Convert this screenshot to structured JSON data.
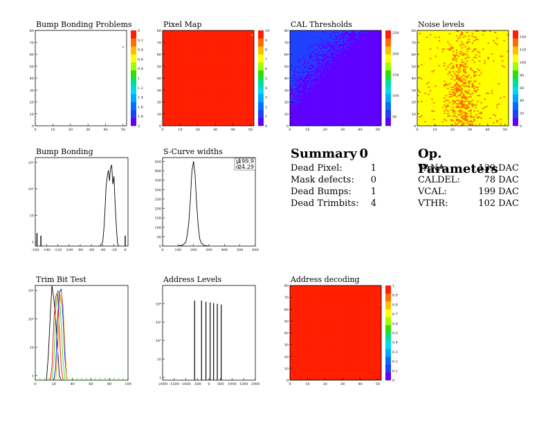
{
  "page": {
    "background": "#ffffff"
  },
  "palette": [
    "#5e00ff",
    "#1f40ff",
    "#0070ff",
    "#00a8ff",
    "#00d8f0",
    "#00e090",
    "#2ee000",
    "#a0ff00",
    "#ffff00",
    "#ffbe00",
    "#ff6e00",
    "#ff1e00"
  ],
  "chart_data": [
    {
      "id": "bump-bonding-problems",
      "type": "heatmap",
      "title": "Bump Bonding Problems",
      "xlim": [
        0,
        52
      ],
      "ylim": [
        0,
        80
      ],
      "xticks": [
        0,
        10,
        20,
        30,
        40,
        50
      ],
      "xticklabels": [
        "0",
        "10",
        "20",
        "30",
        "40",
        "50"
      ],
      "yticks": [
        0,
        10,
        20,
        30,
        40,
        50,
        60,
        70,
        80
      ],
      "yticklabels": [
        "0",
        "10",
        "20",
        "30",
        "40",
        "50",
        "60",
        "70",
        "80"
      ],
      "zlim": [
        0,
        2
      ],
      "zaxis_reversed": true,
      "zticks": [
        0,
        0.2,
        0.4,
        0.6,
        0.8,
        1,
        1.2,
        1.4,
        1.6,
        1.8,
        2
      ],
      "zticklabels": [
        "0",
        "0.2",
        "0.4",
        "0.6",
        "0.8",
        "1",
        "1.2",
        "1.4",
        "1.6",
        "1.8",
        "2"
      ],
      "fill": "empty",
      "points": [
        {
          "x": 50,
          "y": 66,
          "z": 0.2
        }
      ]
    },
    {
      "id": "pixel-map",
      "type": "heatmap",
      "title": "Pixel Map",
      "xlim": [
        0,
        52
      ],
      "ylim": [
        0,
        80
      ],
      "xticks": [
        0,
        10,
        20,
        30,
        40,
        50
      ],
      "xticklabels": [
        "0",
        "10",
        "20",
        "30",
        "40",
        "50"
      ],
      "yticks": [
        0,
        10,
        20,
        30,
        40,
        50,
        60,
        70,
        80
      ],
      "yticklabels": [
        "0",
        "10",
        "20",
        "30",
        "40",
        "50",
        "60",
        "70",
        "80"
      ],
      "zlim": [
        0,
        10
      ],
      "zticks": [
        0,
        1,
        2,
        3,
        4,
        5,
        6,
        7,
        8,
        9,
        10
      ],
      "zticklabels": [
        "0",
        "1",
        "2",
        "3",
        "4",
        "5",
        "6",
        "7",
        "8",
        "9",
        "10"
      ],
      "fill": "uniform",
      "fill_value": 10,
      "points": [
        {
          "x": 51,
          "y": 76,
          "z": 8
        }
      ]
    },
    {
      "id": "cal-thresholds",
      "type": "heatmap",
      "title": "CAL Thresholds",
      "xlim": [
        0,
        52
      ],
      "ylim": [
        0,
        80
      ],
      "xticks": [
        0,
        10,
        20,
        30,
        40,
        50
      ],
      "xticklabels": [
        "0",
        "10",
        "20",
        "30",
        "40",
        "50"
      ],
      "yticks": [
        0,
        10,
        20,
        30,
        40,
        50,
        60,
        70,
        80
      ],
      "yticklabels": [
        "0",
        "10",
        "20",
        "30",
        "40",
        "50",
        "60",
        "70",
        "80"
      ],
      "zlim": [
        28,
        255
      ],
      "zticks": [
        50,
        100,
        150,
        200,
        250
      ],
      "zticklabels": [
        "50",
        "100",
        "150",
        "200",
        "250"
      ],
      "fill": "gradient",
      "fill_range": [
        30,
        55
      ]
    },
    {
      "id": "noise-levels",
      "type": "heatmap",
      "title": "Noise levels",
      "xlim": [
        0,
        52
      ],
      "ylim": [
        0,
        80
      ],
      "xticks": [
        0,
        10,
        20,
        30,
        40,
        50
      ],
      "xticklabels": [
        "0",
        "10",
        "20",
        "30",
        "40",
        "50"
      ],
      "yticks": [
        0,
        10,
        20,
        30,
        40,
        50,
        60,
        70,
        80
      ],
      "yticklabels": [
        "0",
        "10",
        "20",
        "30",
        "40",
        "50",
        "60",
        "70",
        "80"
      ],
      "zlim": [
        0,
        150
      ],
      "zticks": [
        0,
        20,
        40,
        60,
        80,
        100,
        120,
        140
      ],
      "zticklabels": [
        "0",
        "20",
        "40",
        "60",
        "80",
        "100",
        "120",
        "140"
      ],
      "fill": "noise",
      "fill_value": 100,
      "hot_value": 125,
      "hot_center_x": 25
    },
    {
      "id": "bump-bonding",
      "type": "line",
      "title": "Bump Bonding",
      "logy": true,
      "xlim": [
        -160,
        5
      ],
      "ylim": [
        0.7,
        1500
      ],
      "xticks": [
        -160,
        -140,
        -120,
        -100,
        -80,
        -60,
        -40,
        -20,
        0
      ],
      "xticklabels": [
        "-160",
        "-140",
        "-120",
        "-100",
        "-80",
        "-60",
        "-40",
        "-20",
        "0"
      ],
      "yticks": [
        1,
        10,
        100,
        1000
      ],
      "yticklabels": [
        "1",
        "10",
        "10²",
        "10³"
      ],
      "series": [
        {
          "color": "#000000",
          "x": [
            -45,
            -40,
            -38,
            -36,
            -34,
            -32,
            -30,
            -28,
            -26,
            -24,
            -22,
            -20,
            -18,
            -16,
            -14,
            -12
          ],
          "y": [
            0.7,
            1,
            3,
            15,
            120,
            300,
            500,
            200,
            600,
            800,
            150,
            300,
            30,
            5,
            1,
            0.7
          ]
        }
      ],
      "spikes": [
        {
          "x": -157,
          "y": 1.5
        },
        {
          "x": -150,
          "y": 1.2
        },
        {
          "x": 0,
          "y": 1.2
        }
      ]
    },
    {
      "id": "s-curve-widths",
      "type": "line",
      "title": "S-Curve widths",
      "xlim": [
        0,
        600
      ],
      "ylim": [
        0,
        470
      ],
      "xticks": [
        0,
        100,
        200,
        300,
        400,
        500,
        600
      ],
      "xticklabels": [
        "0",
        "100",
        "200",
        "300",
        "400",
        "500",
        "600"
      ],
      "yticks": [
        0,
        50,
        100,
        150,
        200,
        250,
        300,
        350,
        400,
        450
      ],
      "yticklabels": [
        "0",
        "50",
        "100",
        "150",
        "200",
        "250",
        "300",
        "350",
        "400",
        "450"
      ],
      "series": [
        {
          "color": "#000000",
          "x": [
            100,
            130,
            150,
            160,
            170,
            180,
            190,
            200,
            210,
            220,
            230,
            240,
            250,
            270,
            300
          ],
          "y": [
            0,
            5,
            20,
            60,
            130,
            250,
            400,
            450,
            380,
            230,
            110,
            40,
            15,
            3,
            0
          ]
        }
      ],
      "stats": [
        {
          "label": "μ:",
          "value": "199.9"
        },
        {
          "label": "σ:",
          "value": "24.29"
        }
      ]
    },
    {
      "id": "trim-bit-test",
      "type": "line",
      "title": "Trim Bit Test",
      "logy": true,
      "xlim": [
        0,
        100
      ],
      "ylim": [
        0.7,
        1500
      ],
      "xticks": [
        0,
        20,
        40,
        60,
        80,
        100
      ],
      "xticklabels": [
        "0",
        "20",
        "40",
        "60",
        "80",
        "100"
      ],
      "yticks": [
        1,
        10,
        100,
        1000
      ],
      "yticklabels": [
        "1",
        "10",
        "10²",
        "10³"
      ],
      "series": [
        {
          "color": "#000000",
          "x": [
            12,
            14,
            16,
            18,
            20,
            22,
            24,
            26,
            28
          ],
          "y": [
            0.7,
            5,
            100,
            1500,
            500,
            100,
            10,
            1,
            0.7
          ]
        },
        {
          "color": "#ff0000",
          "x": [
            16,
            18,
            20,
            22,
            24,
            26,
            28,
            30
          ],
          "y": [
            0.7,
            2,
            80,
            600,
            900,
            40,
            2,
            0.7
          ]
        },
        {
          "color": "#2ee000",
          "x": [
            18,
            20,
            22,
            24,
            26,
            28,
            30,
            32
          ],
          "y": [
            0.7,
            3,
            200,
            1000,
            800,
            60,
            3,
            0.7
          ]
        },
        {
          "color": "#0000ff",
          "x": [
            20,
            22,
            24,
            26,
            28,
            30,
            32,
            34
          ],
          "y": [
            0.7,
            2,
            100,
            900,
            1100,
            100,
            4,
            0.7
          ]
        },
        {
          "color": "#ff9900",
          "x": [
            22,
            24,
            26,
            28,
            30,
            32,
            34
          ],
          "y": [
            0.7,
            5,
            200,
            900,
            300,
            10,
            0.7
          ]
        }
      ],
      "baseline": {
        "color": "#2ee000",
        "y": 0.8,
        "x_step": 5
      }
    },
    {
      "id": "address-levels",
      "type": "line",
      "title": "Address Levels",
      "logy": true,
      "xlim": [
        -2000,
        2000
      ],
      "ylim": [
        0.7,
        100000
      ],
      "xticks": [
        -2000,
        -1500,
        -1000,
        -500,
        0,
        500,
        1000,
        1500,
        2000
      ],
      "xticklabels": [
        "-2000",
        "-1500",
        "-1000",
        "-500",
        "0",
        "500",
        "1000",
        "1500",
        "2000"
      ],
      "yticks": [
        1,
        10,
        100,
        1000,
        10000
      ],
      "yticklabels": [
        "1",
        "10",
        "10²",
        "10³",
        "10⁴"
      ],
      "peaks": [
        {
          "x": -620,
          "y": 15000
        },
        {
          "x": -320,
          "y": 15000
        },
        {
          "x": -130,
          "y": 13000
        },
        {
          "x": 50,
          "y": 12000
        },
        {
          "x": 200,
          "y": 11000
        },
        {
          "x": 360,
          "y": 10000
        },
        {
          "x": 530,
          "y": 9000
        }
      ]
    },
    {
      "id": "address-decoding",
      "type": "heatmap",
      "title": "Address decoding",
      "xlim": [
        0,
        52
      ],
      "ylim": [
        0,
        80
      ],
      "xticks": [
        0,
        10,
        20,
        30,
        40,
        50
      ],
      "xticklabels": [
        "0",
        "10",
        "20",
        "30",
        "40",
        "50"
      ],
      "yticks": [
        0,
        10,
        20,
        30,
        40,
        50,
        60,
        70,
        80
      ],
      "yticklabels": [
        "0",
        "10",
        "20",
        "30",
        "40",
        "50",
        "60",
        "70",
        "80"
      ],
      "zlim": [
        0,
        1
      ],
      "zticks": [
        0,
        0.1,
        0.2,
        0.3,
        0.4,
        0.5,
        0.6,
        0.7,
        0.8,
        0.9,
        1
      ],
      "zticklabels": [
        "0",
        "0.1",
        "0.2",
        "0.3",
        "0.4",
        "0.5",
        "0.6",
        "0.7",
        "0.8",
        "0.9",
        "1"
      ],
      "fill": "uniform",
      "fill_value": 1,
      "points": [
        {
          "x": 51,
          "y": 64,
          "z": 0.9
        }
      ]
    }
  ],
  "summary": {
    "title": "Summary",
    "title_value": "0",
    "rows": [
      {
        "label": "Dead Pixel:",
        "value": "1"
      },
      {
        "label": "Mask defects:",
        "value": "0"
      },
      {
        "label": "Dead Bumps:",
        "value": "1"
      },
      {
        "label": "Dead Trimbits:",
        "value": "4"
      }
    ]
  },
  "op_params": {
    "title": "Op. Parameters",
    "rows": [
      {
        "label": "VANA:",
        "value": "139 DAC"
      },
      {
        "label": "CALDEL:",
        "value": "78 DAC"
      },
      {
        "label": "VCAL:",
        "value": "199 DAC"
      },
      {
        "label": "VTHR:",
        "value": "102 DAC"
      }
    ]
  }
}
